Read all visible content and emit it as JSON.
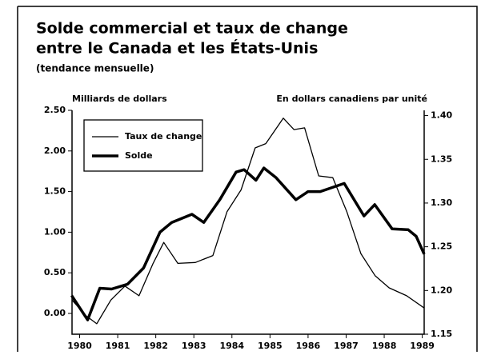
{
  "chart_data": {
    "type": "line",
    "title": [
      "Solde commercial et taux de change",
      "entre le Canada et les États-Unis"
    ],
    "subtitle": "(tendance mensuelle)",
    "ylabel": "Milliards de dollars",
    "y2label": "En dollars canadiens par unité",
    "xlim": [
      1979.8,
      1989.05
    ],
    "xticks": [
      1980,
      1981,
      1982,
      1983,
      1984,
      1985,
      1986,
      1987,
      1988,
      1989
    ],
    "ylim": [
      -0.256,
      2.5
    ],
    "yticks": [
      {
        "value": 0,
        "label": "0.00"
      },
      {
        "value": 0.5,
        "label": "0.50"
      },
      {
        "value": 1,
        "label": "1.00"
      },
      {
        "value": 1.5,
        "label": "1.50"
      },
      {
        "value": 2,
        "label": "2.00"
      },
      {
        "value": 2.5,
        "label": "2.50"
      }
    ],
    "y2lim": [
      1.15,
      1.406
    ],
    "y2ticks": [
      1.15,
      {
        "value": 1.2,
        "label": "1.20"
      },
      1.25,
      {
        "value": 1.3,
        "label": "1.30"
      },
      1.35,
      {
        "value": 1.4,
        "label": "1.40"
      }
    ],
    "legend": "upper left",
    "series": [
      {
        "name": "Taux de change",
        "color": "#000000",
        "axis": "y2",
        "x": [
          1979.8,
          1980.17,
          1980.45,
          1980.82,
          1981.19,
          1981.56,
          1981.93,
          1982.21,
          1982.58,
          1983.04,
          1983.5,
          1983.87,
          1984.24,
          1984.61,
          1984.89,
          1985.35,
          1985.63,
          1985.91,
          1986.28,
          1986.65,
          1987.02,
          1987.39,
          1987.76,
          1988.13,
          1988.59,
          1989.05
        ],
        "values": [
          1.189,
          1.171,
          1.162,
          1.189,
          1.205,
          1.194,
          1.231,
          1.255,
          1.231,
          1.232,
          1.24,
          1.29,
          1.315,
          1.363,
          1.368,
          1.397,
          1.384,
          1.386,
          1.331,
          1.329,
          1.29,
          1.242,
          1.217,
          1.203,
          1.194,
          1.18
        ]
      },
      {
        "name": "Solde",
        "color": "#000000",
        "x": [
          1979.79,
          1980.21,
          1980.53,
          1980.84,
          1981.26,
          1981.68,
          1982.11,
          1982.42,
          1982.95,
          1983.26,
          1983.68,
          1984.11,
          1984.32,
          1984.63,
          1984.84,
          1985.16,
          1985.68,
          1986.0,
          1986.32,
          1986.95,
          1987.47,
          1987.75,
          1988.21,
          1988.63,
          1988.84,
          1989.05
        ],
        "values": [
          0.22,
          -0.08,
          0.31,
          0.3,
          0.36,
          0.56,
          1.0,
          1.12,
          1.22,
          1.12,
          1.4,
          1.74,
          1.77,
          1.64,
          1.79,
          1.67,
          1.4,
          1.5,
          1.5,
          1.6,
          1.2,
          1.34,
          1.04,
          1.03,
          0.95,
          0.73
        ]
      }
    ]
  }
}
